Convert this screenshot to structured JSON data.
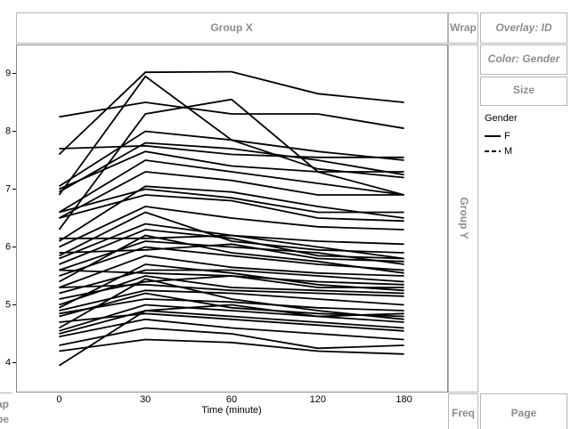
{
  "chart_data": {
    "type": "line",
    "x_label": "Time (minute)",
    "categories": [
      "0",
      "30",
      "60",
      "120",
      "180"
    ],
    "ylim": [
      3.5,
      9.5
    ],
    "yticks": [
      4,
      5,
      6,
      7,
      8,
      9
    ],
    "color": "#000000",
    "legend_title": "Gender",
    "legend": [
      {
        "name": "F",
        "dash": false
      },
      {
        "name": "M",
        "dash": true
      }
    ],
    "series": [
      {
        "values": [
          8.25,
          8.5,
          8.3,
          8.3,
          8.05
        ]
      },
      {
        "values": [
          7.6,
          9.02,
          9.03,
          8.65,
          8.5
        ]
      },
      {
        "values": [
          6.9,
          8.95,
          7.85,
          7.35,
          7.2
        ]
      },
      {
        "values": [
          6.3,
          8.3,
          8.55,
          7.3,
          6.9
        ]
      },
      {
        "values": [
          7.05,
          8.0,
          7.85,
          7.65,
          7.5
        ]
      },
      {
        "values": [
          6.95,
          7.8,
          7.7,
          7.5,
          7.25
        ]
      },
      {
        "values": [
          7.7,
          7.75,
          7.6,
          7.55,
          7.55
        ]
      },
      {
        "values": [
          7.0,
          7.65,
          7.4,
          7.3,
          7.3
        ]
      },
      {
        "values": [
          6.6,
          7.5,
          7.3,
          7.1,
          6.9
        ]
      },
      {
        "values": [
          6.5,
          7.3,
          7.15,
          6.9,
          6.9
        ]
      },
      {
        "values": [
          6.1,
          7.05,
          6.95,
          6.7,
          6.5
        ]
      },
      {
        "values": [
          6.6,
          7.0,
          6.85,
          6.6,
          6.6
        ]
      },
      {
        "values": [
          6.0,
          6.7,
          6.5,
          6.35,
          6.3
        ]
      },
      {
        "values": [
          6.15,
          6.15,
          6.2,
          6.1,
          6.05
        ]
      },
      {
        "values": [
          5.85,
          6.6,
          6.1,
          5.95,
          5.9
        ]
      },
      {
        "values": [
          5.7,
          6.3,
          6.15,
          5.85,
          5.8
        ]
      },
      {
        "values": [
          5.6,
          6.1,
          6.0,
          5.9,
          5.7
        ]
      },
      {
        "values": [
          5.9,
          5.95,
          6.05,
          5.8,
          5.75
        ]
      },
      {
        "values": [
          5.5,
          6.0,
          5.85,
          5.7,
          5.6
        ]
      },
      {
        "values": [
          5.3,
          5.85,
          5.65,
          5.55,
          5.5
        ]
      },
      {
        "values": [
          5.2,
          5.6,
          5.6,
          5.5,
          5.4
        ]
      },
      {
        "values": [
          5.6,
          5.55,
          5.5,
          5.4,
          5.35
        ]
      },
      {
        "values": [
          5.1,
          5.4,
          5.5,
          5.3,
          5.3
        ]
      },
      {
        "values": [
          5.0,
          5.5,
          5.3,
          5.25,
          5.2
        ]
      },
      {
        "values": [
          5.3,
          5.35,
          5.25,
          5.2,
          5.15
        ]
      },
      {
        "values": [
          4.9,
          5.25,
          5.2,
          5.1,
          5.0
        ]
      },
      {
        "values": [
          4.85,
          5.1,
          5.05,
          4.95,
          4.9
        ]
      },
      {
        "values": [
          4.8,
          5.2,
          4.95,
          4.85,
          4.8
        ]
      },
      {
        "values": [
          4.6,
          5.45,
          5.1,
          4.9,
          4.75
        ]
      },
      {
        "values": [
          4.55,
          5.0,
          4.9,
          4.8,
          4.7
        ]
      },
      {
        "values": [
          4.5,
          4.9,
          4.8,
          4.7,
          4.6
        ]
      },
      {
        "values": [
          4.7,
          4.85,
          4.75,
          4.65,
          4.55
        ]
      },
      {
        "values": [
          4.45,
          4.75,
          4.6,
          4.5,
          4.4
        ]
      },
      {
        "values": [
          3.95,
          4.9,
          5.0,
          4.8,
          4.85
        ]
      },
      {
        "values": [
          4.3,
          4.6,
          4.5,
          4.25,
          4.3
        ]
      },
      {
        "values": [
          4.2,
          4.4,
          4.35,
          4.2,
          4.15
        ]
      },
      {
        "values": [
          5.8,
          6.4,
          6.2,
          6.0,
          5.8
        ]
      },
      {
        "values": [
          6.5,
          6.9,
          6.8,
          6.5,
          6.45
        ]
      },
      {
        "values": [
          5.4,
          6.2,
          5.9,
          5.75,
          5.55
        ]
      },
      {
        "values": [
          4.95,
          5.7,
          5.55,
          5.35,
          5.25
        ]
      }
    ]
  },
  "ui": {
    "group_x": "Group X",
    "wrap": "Wrap",
    "overlay": "Overlay: ID",
    "color": "Color: Gender",
    "size": "Size",
    "group_y": "Group Y",
    "freq": "Freq",
    "page": "Page",
    "map": "Map",
    "shape": "Shape"
  }
}
